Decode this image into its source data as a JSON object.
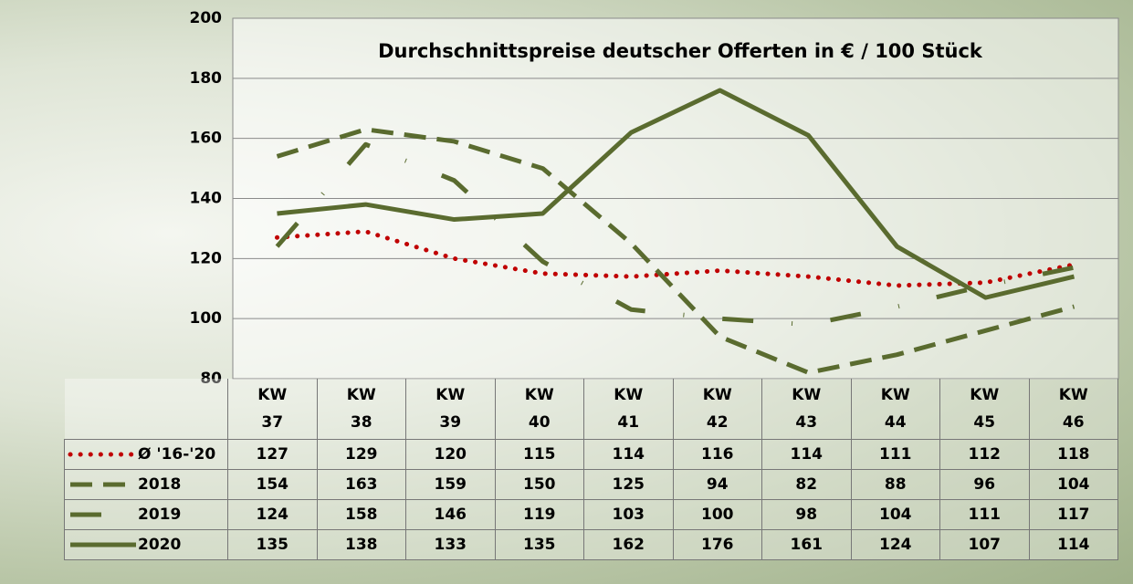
{
  "chart_data": {
    "type": "line",
    "title": "Durchschnittspreise deutscher Offerten in € / 100 Stück",
    "categories": [
      "KW 37",
      "KW 38",
      "KW 39",
      "KW 40",
      "KW 41",
      "KW 42",
      "KW 43",
      "KW 44",
      "KW 45",
      "KW 46"
    ],
    "series": [
      {
        "name": "Ø '16-'20",
        "color": "#c00000",
        "style": "dotted",
        "values": [
          127,
          129,
          120,
          115,
          114,
          116,
          114,
          111,
          112,
          118
        ]
      },
      {
        "name": "2018",
        "color": "#5a6b2f",
        "style": "dashed",
        "values": [
          154,
          163,
          159,
          150,
          125,
          94,
          82,
          88,
          96,
          104
        ]
      },
      {
        "name": "2019",
        "color": "#5a6b2f",
        "style": "dashdot",
        "values": [
          124,
          158,
          146,
          119,
          103,
          100,
          98,
          104,
          111,
          117
        ]
      },
      {
        "name": "2020",
        "color": "#5a6b2f",
        "style": "solid",
        "values": [
          135,
          138,
          133,
          135,
          162,
          176,
          161,
          124,
          107,
          114
        ]
      }
    ],
    "ylim": [
      80,
      200
    ],
    "yticks": [
      80,
      100,
      120,
      140,
      160,
      180,
      200
    ],
    "grid": true
  }
}
